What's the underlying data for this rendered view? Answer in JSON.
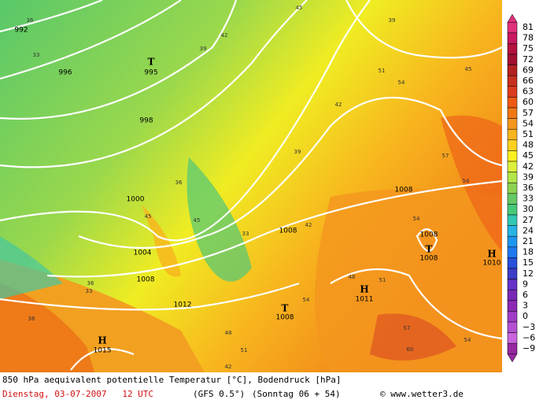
{
  "map": {
    "pressure_labels": [
      "992",
      "996",
      "998",
      "1000",
      "1004",
      "1008",
      "1012",
      "1015",
      "1008",
      "1008",
      "1008",
      "1008",
      "1008",
      "1011",
      "1010",
      "995"
    ],
    "centers": [
      "T",
      "T",
      "T",
      "H",
      "H",
      "H"
    ],
    "temperature_labels": [
      "36",
      "33",
      "39",
      "42",
      "45",
      "39",
      "42",
      "51",
      "54",
      "45",
      "57",
      "54",
      "39",
      "36",
      "45",
      "33",
      "42",
      "54",
      "51",
      "48",
      "54",
      "57",
      "60",
      "54",
      "48",
      "51",
      "42",
      "36",
      "33",
      "36",
      "45"
    ]
  },
  "colorbar": {
    "labels": [
      "81",
      "78",
      "75",
      "72",
      "69",
      "66",
      "63",
      "60",
      "57",
      "54",
      "51",
      "48",
      "45",
      "42",
      "39",
      "36",
      "33",
      "30",
      "27",
      "24",
      "21",
      "18",
      "15",
      "12",
      "9",
      "6",
      "3",
      "0",
      "−3",
      "−6",
      "−9"
    ],
    "colors": [
      "#e0307a",
      "#c81860",
      "#b41040",
      "#a01030",
      "#b42020",
      "#c83020",
      "#dc3c1e",
      "#ee5a14",
      "#f07814",
      "#f4961e",
      "#f8b41e",
      "#fcd21e",
      "#fcf01e",
      "#dcf03c",
      "#b4e646",
      "#8cd250",
      "#64c864",
      "#46c87a",
      "#32c8b4",
      "#28b4e6",
      "#1e96f0",
      "#1e78f0",
      "#2850dc",
      "#3c3cc8",
      "#6432c8",
      "#7828b4",
      "#8c28b4",
      "#a03cc8",
      "#b450d2",
      "#c864dc",
      "#9628a0"
    ]
  },
  "footer": {
    "title": "850 hPa aequivalent potentielle Temperatur [°C], Bodendruck [hPa]",
    "date": "Dienstag, 03-07-2007   12 UTC",
    "model": "(GFS 0.5°)",
    "run": "(Sonntag 06 + 54)",
    "credit": "© www.wetter3.de"
  }
}
